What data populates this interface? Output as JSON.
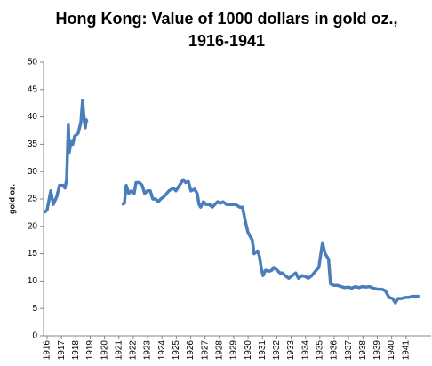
{
  "chart_data": {
    "type": "line",
    "title": [
      "Hong Kong: Value of 1000 dollars in gold oz.,",
      "1916-1941"
    ],
    "y_label": "gold oz.",
    "x": [
      1915.8,
      1916.0,
      1916.25,
      1916.43,
      1916.68,
      1916.86,
      1917.11,
      1917.24,
      1917.36,
      1917.48,
      1917.54,
      1917.67,
      1917.79,
      1917.92,
      1918.16,
      1918.35,
      1918.47,
      1918.6,
      1918.66,
      1918.72,
      1918.78,
      1920.0,
      1921.2,
      1921.38,
      1921.51,
      1921.69,
      1921.88,
      1922.06,
      1922.19,
      1922.43,
      1922.62,
      1922.8,
      1922.99,
      1923.18,
      1923.36,
      1923.55,
      1923.73,
      1923.92,
      1924.17,
      1924.48,
      1924.79,
      1924.97,
      1925.22,
      1925.47,
      1925.65,
      1925.84,
      1926.02,
      1926.27,
      1926.46,
      1926.58,
      1926.7,
      1926.89,
      1927.07,
      1927.32,
      1927.51,
      1927.69,
      1927.88,
      1928.06,
      1928.25,
      1928.5,
      1928.81,
      1929.12,
      1929.43,
      1929.61,
      1929.8,
      1929.98,
      1930.17,
      1930.29,
      1930.42,
      1930.66,
      1930.79,
      1930.91,
      1931.04,
      1931.22,
      1931.47,
      1931.65,
      1931.78,
      1932.03,
      1932.21,
      1932.4,
      1932.58,
      1932.83,
      1933.08,
      1933.32,
      1933.51,
      1933.76,
      1934.01,
      1934.19,
      1934.44,
      1934.69,
      1934.93,
      1935.18,
      1935.37,
      1935.61,
      1935.74,
      1935.99,
      1936.23,
      1936.48,
      1936.73,
      1936.98,
      1937.22,
      1937.47,
      1937.72,
      1937.97,
      1938.21,
      1938.46,
      1938.71,
      1939.02,
      1939.33,
      1939.57,
      1939.82,
      1940.07,
      1940.26,
      1940.44,
      1940.69,
      1940.94,
      1941.18,
      1941.43,
      1941.68,
      1941.93
    ],
    "series": [
      {
        "color": "#4a7ebb",
        "values": [
          22.5,
          23,
          26.5,
          24,
          25.5,
          27.5,
          27.5,
          27,
          28.5,
          38.5,
          33.5,
          35.5,
          35,
          36.5,
          37,
          39,
          43,
          39,
          38,
          39.5,
          39,
          null,
          24,
          24.2,
          27.5,
          26,
          26.5,
          26,
          28,
          28,
          27.5,
          26,
          26.5,
          26.5,
          25,
          25,
          24.5,
          25,
          25.5,
          26.5,
          27,
          26.5,
          27.5,
          28.5,
          28,
          28.2,
          26.5,
          26.8,
          26,
          24,
          23.5,
          24.5,
          24,
          24,
          23.5,
          24,
          24.5,
          24.2,
          24.5,
          24,
          24,
          24,
          23.5,
          23.5,
          21,
          19,
          18,
          17.5,
          15,
          15.5,
          14.5,
          12.5,
          11,
          12,
          11.8,
          12,
          12.5,
          12,
          11.5,
          11.5,
          11,
          10.5,
          11,
          11.5,
          10.5,
          11,
          10.8,
          10.5,
          11,
          11.8,
          12.5,
          17,
          15,
          14,
          9.5,
          9.2,
          9.2,
          9,
          8.8,
          8.9,
          8.7,
          9,
          8.8,
          9,
          8.9,
          9,
          8.7,
          8.5,
          8.5,
          8.2,
          7,
          6.8,
          6,
          6.8,
          6.8,
          7,
          7,
          7.2,
          7.2,
          7.2
        ]
      }
    ],
    "xlim": [
      1915.75,
      1942.75
    ],
    "xticks": [
      1916,
      1917,
      1918,
      1919,
      1920,
      1921,
      1922,
      1923,
      1924,
      1925,
      1926,
      1927,
      1928,
      1929,
      1930,
      1931,
      1932,
      1933,
      1934,
      1935,
      1936,
      1937,
      1938,
      1939,
      1940,
      1941
    ],
    "ylim": [
      0,
      50
    ],
    "yticks": [
      0,
      5,
      10,
      15,
      20,
      25,
      30,
      35,
      40,
      45,
      50
    ]
  }
}
